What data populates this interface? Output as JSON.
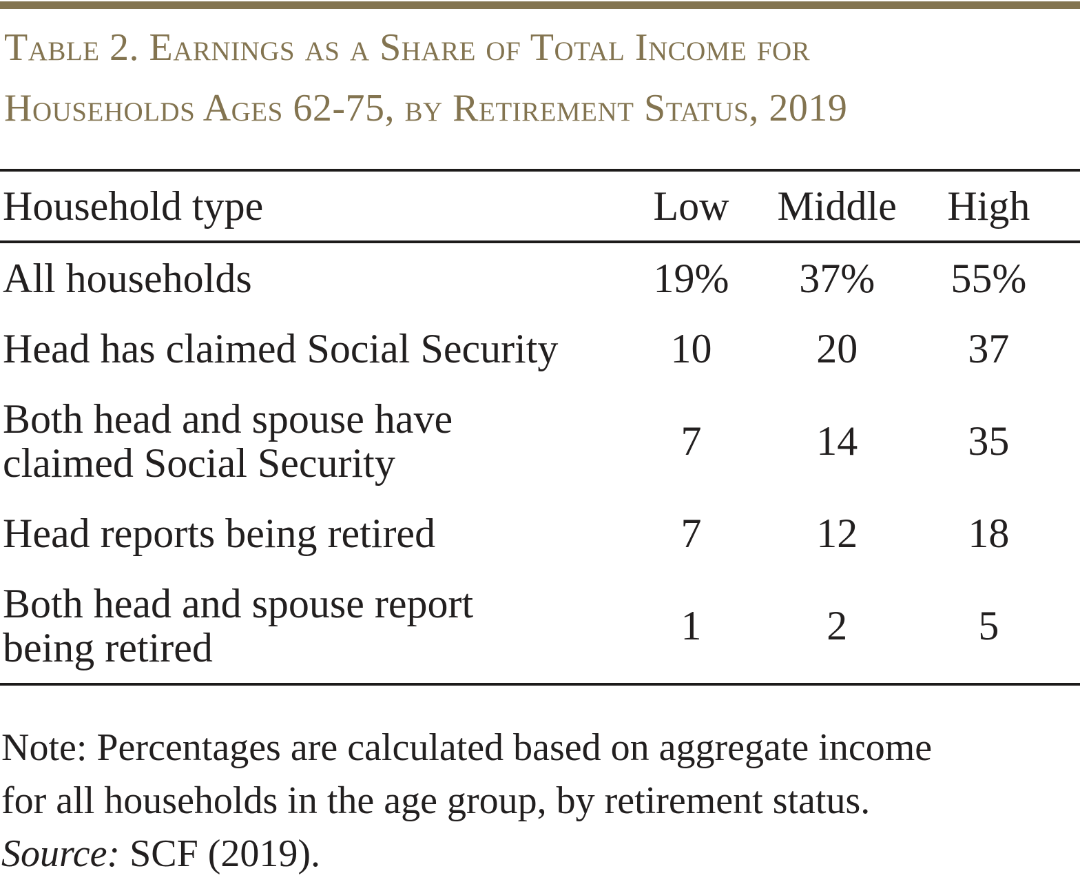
{
  "colors": {
    "accent": "#837450",
    "ink": "#221f1f",
    "rule": "#1d1b1a"
  },
  "title": {
    "line1": "Table 2. Earnings as a Share of Total Income for",
    "line2": "Households Ages 62-75, by Retirement Status, 2019"
  },
  "table": {
    "columns": [
      "Household type",
      "Low",
      "Middle",
      "High"
    ],
    "rows": [
      {
        "label_lines": [
          "All households"
        ],
        "values": [
          "19%",
          "37%",
          "55%"
        ]
      },
      {
        "label_lines": [
          "Head has claimed Social Security"
        ],
        "values": [
          "10",
          "20",
          "37"
        ]
      },
      {
        "label_lines": [
          "Both head and spouse have",
          "claimed Social Security"
        ],
        "values": [
          "7",
          "14",
          "35"
        ]
      },
      {
        "label_lines": [
          "Head reports being retired"
        ],
        "values": [
          "7",
          "12",
          "18"
        ]
      },
      {
        "label_lines": [
          "Both head and spouse report",
          "being retired"
        ],
        "values": [
          "1",
          "2",
          "5"
        ]
      }
    ]
  },
  "note": {
    "line1": "Note: Percentages are calculated based on aggregate income",
    "line2": "for all households in the age group, by retirement status.",
    "source_label": "Source:",
    "source_text": "SCF (2019)."
  }
}
